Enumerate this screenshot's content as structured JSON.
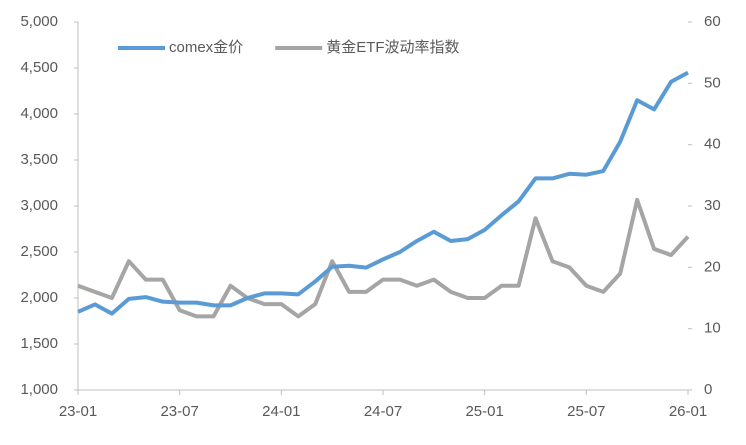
{
  "chart_data": {
    "type": "line",
    "x": [
      "23-01",
      "23-02",
      "23-03",
      "23-04",
      "23-05",
      "23-06",
      "23-07",
      "23-08",
      "23-09",
      "23-10",
      "23-11",
      "23-12",
      "24-01",
      "24-02",
      "24-03",
      "24-04",
      "24-05",
      "24-06",
      "24-07",
      "24-08",
      "24-09",
      "24-10",
      "24-11",
      "24-12",
      "25-01",
      "25-02",
      "25-03",
      "25-04",
      "25-05",
      "25-06",
      "25-07",
      "25-08",
      "25-09",
      "25-10",
      "25-11",
      "25-12",
      "26-01"
    ],
    "xticks": [
      "23-01",
      "23-07",
      "24-01",
      "24-07",
      "25-01",
      "25-07",
      "26-01"
    ],
    "series": [
      {
        "name": "comex金价",
        "color": "#5b9bd5",
        "axis": "y",
        "values": [
          1850,
          1930,
          1830,
          1990,
          2010,
          1960,
          1950,
          1950,
          1920,
          1920,
          2000,
          2050,
          2050,
          2040,
          2180,
          2340,
          2350,
          2330,
          2420,
          2500,
          2620,
          2720,
          2620,
          2640,
          2740,
          2900,
          3050,
          3300,
          3300,
          3350,
          3340,
          3380,
          3700,
          4150,
          4050,
          4350,
          4450
        ]
      },
      {
        "name": "黄金ETF波动率指数",
        "color": "#a5a5a5",
        "axis": "y2",
        "values": [
          17,
          16,
          15,
          21,
          18,
          18,
          13,
          12,
          12,
          17,
          15,
          14,
          14,
          12,
          14,
          21,
          16,
          16,
          18,
          18,
          17,
          18,
          16,
          15,
          15,
          17,
          17,
          28,
          21,
          20,
          17,
          16,
          19,
          31,
          23,
          22,
          25
        ]
      }
    ],
    "ylim": [
      1000,
      5000
    ],
    "yticks": [
      {
        "value": 1000,
        "label": "1,000"
      },
      {
        "value": 1500,
        "label": "1,500"
      },
      {
        "value": 2000,
        "label": "2,000"
      },
      {
        "value": 2500,
        "label": "2,500"
      },
      {
        "value": 3000,
        "label": "3,000"
      },
      {
        "value": 3500,
        "label": "3,500"
      },
      {
        "value": 4000,
        "label": "4,000"
      },
      {
        "value": 4500,
        "label": "4,500"
      },
      {
        "value": 5000,
        "label": "5,000"
      }
    ],
    "y2lim": [
      0,
      60
    ],
    "y2ticks": [
      0,
      10,
      20,
      30,
      40,
      50,
      60
    ],
    "legend": "top-left"
  }
}
